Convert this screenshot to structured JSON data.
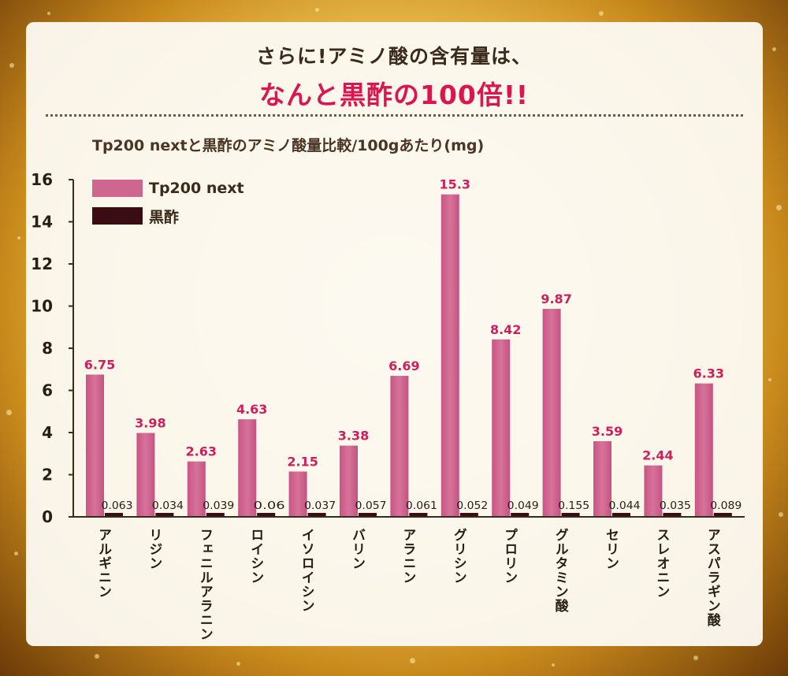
{
  "header": {
    "line1": "さらに!アミノ酸の含有量は、",
    "line2": "なんと黒酢の100倍!!"
  },
  "colors": {
    "tp200": "#cf6690",
    "kurozu": "#3a0c14",
    "value_label": "#cc1f5b",
    "headline_accent": "#d9164f"
  },
  "chart_data": {
    "type": "bar",
    "title": "Tp200 nextと黒酢のアミノ酸量比較/100gあたり(mg)",
    "categories": [
      "アルギニン",
      "リジン",
      "フェニルアラニン",
      "ロイシン",
      "イソロイシン",
      "バリン",
      "アラニン",
      "グリシン",
      "プロリン",
      "グルタミン酸",
      "セリン",
      "スレオニン",
      "アスパラギン酸"
    ],
    "series": [
      {
        "name": "Tp200 next",
        "values": [
          6.75,
          3.98,
          2.63,
          4.63,
          2.15,
          3.38,
          6.69,
          15.3,
          8.42,
          9.87,
          3.59,
          2.44,
          6.33
        ]
      },
      {
        "name": "黒酢",
        "values": [
          0.063,
          0.034,
          0.039,
          0.06,
          0.037,
          0.057,
          0.061,
          0.052,
          0.049,
          0.155,
          0.044,
          0.035,
          0.089
        ]
      }
    ],
    "value_labels": {
      "tp200": [
        "6.75",
        "3.98",
        "2.63",
        "4.63",
        "2.15",
        "3.38",
        "6.69",
        "15.3",
        "8.42",
        "9.87",
        "3.59",
        "2.44",
        "6.33"
      ],
      "kurozu": [
        "0.063",
        "0.034",
        "0.039",
        "0.06",
        "0.037",
        "0.057",
        "0.061",
        "0.052",
        "0.049",
        "0.155",
        "0.044",
        "0.035",
        "0.089"
      ]
    },
    "yticks": [
      "0",
      "2",
      "4",
      "6",
      "8",
      "10",
      "12",
      "14",
      "16"
    ],
    "ylim": [
      0,
      16
    ],
    "grid": false,
    "legend": "top-left"
  }
}
